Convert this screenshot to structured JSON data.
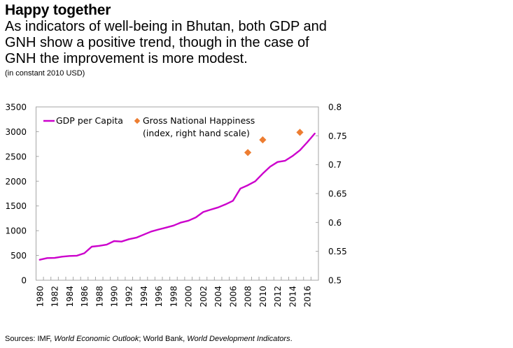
{
  "header": {
    "title": "Happy together",
    "subtitle": "As indicators of well-being in Bhutan, both GDP and GNH show a positive trend, though in the case of GNH the improvement is more modest.",
    "units": "(in constant 2010 USD)"
  },
  "footer": {
    "source_prefix": "Sources: IMF, ",
    "source_1": "World Economic Outlook",
    "source_mid": "; World Bank, ",
    "source_2": "World Development Indicators",
    "source_suffix": "."
  },
  "colors": {
    "gdp_line": "#cc00cc",
    "gnh_marker": "#ed7d31",
    "axis": "#a6a6a6",
    "text": "#000000"
  },
  "chart_data": {
    "type": "line",
    "title": "Happy together",
    "xlabel": "",
    "ylabel": "",
    "y_left": {
      "lim": [
        0,
        3500
      ],
      "ticks": [
        0,
        500,
        1000,
        1500,
        2000,
        2500,
        3000,
        3500
      ],
      "tick_labels": [
        "0",
        "500",
        "1000",
        "1500",
        "2000",
        "2500",
        "3000",
        "3500"
      ]
    },
    "y_right": {
      "lim": [
        0.5,
        0.8
      ],
      "ticks": [
        0.5,
        0.55,
        0.6,
        0.65,
        0.7,
        0.75,
        0.8
      ],
      "tick_labels": [
        "0.5",
        "0.55",
        "0.6",
        "0.65",
        "0.7",
        "0.75",
        "0.8"
      ]
    },
    "x": [
      1980,
      1981,
      1982,
      1983,
      1984,
      1985,
      1986,
      1987,
      1988,
      1989,
      1990,
      1991,
      1992,
      1993,
      1994,
      1995,
      1996,
      1997,
      1998,
      1999,
      2000,
      2001,
      2002,
      2003,
      2004,
      2005,
      2006,
      2007,
      2008,
      2009,
      2010,
      2011,
      2012,
      2013,
      2014,
      2015,
      2016,
      2017
    ],
    "x_tick_labels": [
      "1980",
      "1982",
      "1984",
      "1986",
      "1988",
      "1990",
      "1992",
      "1994",
      "1996",
      "1998",
      "2000",
      "2002",
      "2004",
      "2006",
      "2008",
      "2010",
      "2012",
      "2014",
      "2016"
    ],
    "grid": false,
    "legend": {
      "placement": "top-left",
      "entries": [
        "GDP per Capita",
        "Gross National Happiness",
        "(index, right hand scale)"
      ]
    },
    "series": [
      {
        "name": "GDP per Capita",
        "axis": "left",
        "style": "line",
        "values": [
          413,
          447,
          450,
          475,
          490,
          495,
          545,
          678,
          694,
          719,
          790,
          780,
          828,
          860,
          921,
          983,
          1025,
          1062,
          1104,
          1166,
          1203,
          1269,
          1378,
          1425,
          1471,
          1533,
          1604,
          1852,
          1918,
          1998,
          2153,
          2294,
          2388,
          2412,
          2506,
          2623,
          2788,
          2962
        ]
      },
      {
        "name": "Gross National Happiness (index, right hand scale)",
        "axis": "right",
        "style": "marker",
        "points": [
          {
            "x": 2008,
            "y": 0.721
          },
          {
            "x": 2010,
            "y": 0.743
          },
          {
            "x": 2015,
            "y": 0.756
          }
        ]
      }
    ]
  }
}
